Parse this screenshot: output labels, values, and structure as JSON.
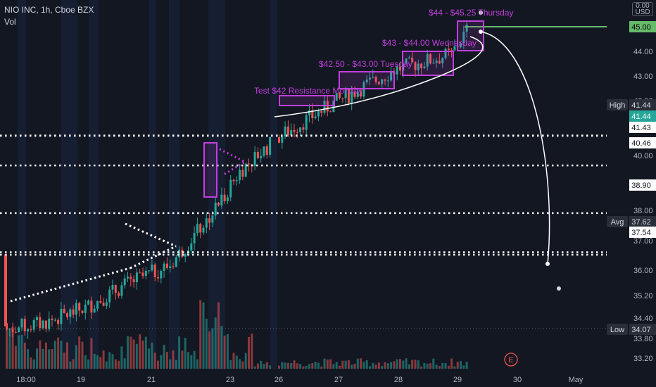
{
  "header": {
    "title": "NIO INC, 1h, Cboe BZX",
    "volume_label": "Vol",
    "currency_badge": [
      "0.00",
      "USD"
    ]
  },
  "colors": {
    "background": "#131722",
    "up": "#26a69a",
    "down": "#ef5350",
    "annotation": "#c13fdd",
    "price_line": "#66bb6a",
    "axis_text": "#b2b5be"
  },
  "chart_data": {
    "type": "candlestick",
    "title": "NIO INC, 1h, Cboe BZX",
    "ylim": [
      32.9,
      46.2
    ],
    "y_ticks": [
      "45.00",
      "44.00",
      "43.00",
      "42.00",
      "41.00",
      "40.00",
      "39.00",
      "38.00",
      "37.00",
      "36.00",
      "35.20",
      "34.40",
      "33.80",
      "33.20"
    ],
    "x_ticks": [
      "18:00",
      "19",
      "21",
      "23",
      "26",
      "27",
      "28",
      "29",
      "30",
      "May"
    ],
    "horizontal_levels": [
      "41.44",
      "41.43",
      "40.46",
      "38.90",
      "37.62",
      "37.54"
    ],
    "price_labels": [
      {
        "text": "45.00",
        "kind": "last"
      },
      {
        "text": "41.44",
        "kind": "high-tag",
        "tag": "High"
      },
      {
        "text": "41.44",
        "kind": "current"
      },
      {
        "text": "41.43",
        "kind": "level"
      },
      {
        "text": "40.46",
        "kind": "level"
      },
      {
        "text": "38.90",
        "kind": "level"
      },
      {
        "text": "37.62",
        "kind": "avg-tag",
        "tag": "Avg"
      },
      {
        "text": "37.54",
        "kind": "level"
      },
      {
        "text": "34.07",
        "kind": "low-tag",
        "tag": "Low"
      }
    ],
    "annotations": [
      "Test $42 Resistance Monday",
      "$42.50 - $43.00 Tuesday",
      "$43 - $44.00 Wednesday",
      "$44 - $45.25 Thursday"
    ],
    "marker": "E",
    "key_closes": [
      {
        "x": "18:00",
        "y": 35.1
      },
      {
        "x": "19",
        "y": 35.8
      },
      {
        "x": "21",
        "y": 37.2
      },
      {
        "x": "22",
        "y": 38.9
      },
      {
        "x": "23",
        "y": 40.4
      },
      {
        "x": "26",
        "y": 41.4
      },
      {
        "x": "27",
        "y": 42.6
      },
      {
        "x": "28",
        "y": 43.6
      },
      {
        "x": "29",
        "y": 45.0
      }
    ]
  }
}
